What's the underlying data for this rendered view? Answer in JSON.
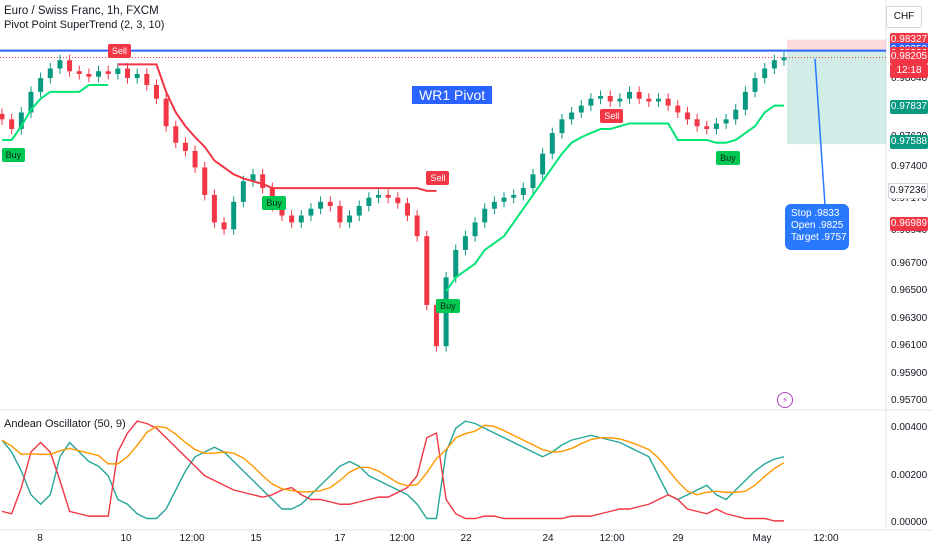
{
  "header": {
    "symbol_title": "Euro / Swiss Franc, 1h, FXCM",
    "indicator_1": "Pivot Point SuperTrend (2, 3, 10)",
    "currency": "CHF"
  },
  "annotations": {
    "wr1_label": "WR1 Pivot",
    "note_lines": [
      "Stop .9833",
      "Open .9825",
      "Target .9757"
    ],
    "sell_label": "Sell",
    "buy_label": "Buy"
  },
  "oscillator": {
    "label": "Andean Oscillator (50, 9)"
  },
  "price_axis": {
    "ticks": [
      "0.98320",
      "0.98230",
      "0.98040",
      "0.97620",
      "0.97400",
      "0.97170",
      "0.96940",
      "0.96700",
      "0.96500",
      "0.96300",
      "0.96100",
      "0.95900",
      "0.95700"
    ]
  },
  "osc_axis": {
    "ticks": [
      "0.00400",
      "0.00200",
      "0.00000"
    ]
  },
  "price_tags": [
    {
      "text": "0.98327",
      "color": "#f23645"
    },
    {
      "text": "0.98253",
      "color": "#2962ff"
    },
    {
      "text": "0.98226",
      "color": "#f23645"
    },
    {
      "text": "0.98205",
      "color": "#f23645"
    },
    {
      "text": "12:18",
      "color": "#f23645"
    },
    {
      "text": "0.97837",
      "color": "#089981"
    },
    {
      "text": "0.97588",
      "color": "#089981"
    },
    {
      "text": "0.97236",
      "color": "#ffffff"
    },
    {
      "text": "0.96989",
      "color": "#f23645"
    }
  ],
  "time_axis": {
    "labels": [
      "8",
      "10",
      "12:00",
      "15",
      "17",
      "12:00",
      "22",
      "24",
      "12:00",
      "29",
      "May",
      "12:00"
    ]
  },
  "colors": {
    "up": "#089981",
    "down": "#f23645",
    "supertrend_up": "#00e676",
    "supertrend_down": "#f23645",
    "pivot": "#2962ff",
    "osc_bull": "#26a69a",
    "osc_bear": "#f23645",
    "osc_signal": "#ff9800"
  },
  "chart_data": {
    "type": "line",
    "title": "Euro / Swiss Franc, 1h, FXCM",
    "x_labels": [
      "8",
      "10",
      "12:00",
      "15",
      "17",
      "12:00",
      "22",
      "24",
      "12:00",
      "29",
      "May",
      "12:00"
    ],
    "ylim": [
      0.9565,
      0.984
    ],
    "pivot_WR1": 0.9825,
    "trade": {
      "stop": 0.9833,
      "open": 0.9825,
      "target": 0.9757
    },
    "price_close": [
      0.9775,
      0.9768,
      0.978,
      0.9795,
      0.9805,
      0.9812,
      0.9818,
      0.981,
      0.9808,
      0.9806,
      0.981,
      0.9808,
      0.9812,
      0.9805,
      0.9808,
      0.98,
      0.979,
      0.977,
      0.9758,
      0.9752,
      0.974,
      0.972,
      0.97,
      0.9695,
      0.9715,
      0.973,
      0.9735,
      0.9725,
      0.9712,
      0.9705,
      0.97,
      0.9705,
      0.971,
      0.9715,
      0.9712,
      0.97,
      0.9705,
      0.9712,
      0.9718,
      0.972,
      0.9718,
      0.9714,
      0.9705,
      0.969,
      0.964,
      0.961,
      0.966,
      0.968,
      0.969,
      0.97,
      0.971,
      0.9715,
      0.9718,
      0.972,
      0.9725,
      0.9735,
      0.975,
      0.9765,
      0.9775,
      0.978,
      0.9785,
      0.979,
      0.9792,
      0.9788,
      0.979,
      0.9795,
      0.979,
      0.9788,
      0.979,
      0.9785,
      0.978,
      0.9775,
      0.977,
      0.9768,
      0.9772,
      0.9775,
      0.9782,
      0.9795,
      0.9805,
      0.9812,
      0.9818,
      0.982
    ],
    "supertrend": [
      0.976,
      0.976,
      0.977,
      0.9782,
      0.979,
      0.9795,
      0.9795,
      0.9795,
      0.9795,
      0.98,
      0.98,
      0.98,
      0.9815,
      0.9815,
      0.9815,
      0.9815,
      0.9815,
      0.9795,
      0.978,
      0.977,
      0.9762,
      0.9755,
      0.9745,
      0.974,
      0.9735,
      0.9732,
      0.973,
      0.9728,
      0.9725,
      0.9725,
      0.9725,
      0.9725,
      0.9725,
      0.9725,
      0.9725,
      0.9725,
      0.9725,
      0.9725,
      0.9725,
      0.9725,
      0.9725,
      0.9725,
      0.9725,
      0.9725,
      0.9723,
      0.9723,
      0.965,
      0.966,
      0.9665,
      0.967,
      0.968,
      0.9685,
      0.969,
      0.97,
      0.971,
      0.972,
      0.973,
      0.974,
      0.975,
      0.9758,
      0.9762,
      0.9765,
      0.9768,
      0.9768,
      0.977,
      0.9772,
      0.9772,
      0.9772,
      0.9772,
      0.9772,
      0.976,
      0.976,
      0.976,
      0.976,
      0.9758,
      0.9758,
      0.976,
      0.9765,
      0.977,
      0.978,
      0.9785,
      0.9785
    ],
    "supertrend_dir": [
      1,
      1,
      1,
      1,
      1,
      1,
      1,
      1,
      1,
      1,
      1,
      1,
      -1,
      -1,
      -1,
      -1,
      -1,
      -1,
      -1,
      -1,
      -1,
      -1,
      -1,
      -1,
      -1,
      -1,
      -1,
      -1,
      -1,
      -1,
      -1,
      -1,
      -1,
      -1,
      -1,
      -1,
      -1,
      -1,
      -1,
      -1,
      -1,
      -1,
      -1,
      -1,
      -1,
      -1,
      1,
      1,
      1,
      1,
      1,
      1,
      1,
      1,
      1,
      1,
      1,
      1,
      1,
      1,
      1,
      1,
      1,
      1,
      1,
      1,
      1,
      1,
      1,
      1,
      1,
      1,
      1,
      1,
      1,
      1,
      1,
      1,
      1,
      1,
      1,
      1
    ],
    "osc_bull": [
      0.0035,
      0.003,
      0.0022,
      0.0012,
      0.0008,
      0.0012,
      0.0028,
      0.0034,
      0.003,
      0.0026,
      0.0024,
      0.002,
      0.001,
      0.0008,
      0.0004,
      0.0002,
      0.0002,
      0.0006,
      0.0014,
      0.0022,
      0.0028,
      0.003,
      0.0032,
      0.003,
      0.0026,
      0.0022,
      0.0018,
      0.0014,
      0.001,
      0.0006,
      0.0006,
      0.0008,
      0.0012,
      0.0016,
      0.002,
      0.0024,
      0.0026,
      0.0024,
      0.002,
      0.0018,
      0.0016,
      0.0014,
      0.0012,
      0.0008,
      0.0002,
      0.0002,
      0.003,
      0.004,
      0.0043,
      0.0042,
      0.004,
      0.0038,
      0.0036,
      0.0034,
      0.0032,
      0.003,
      0.0028,
      0.003,
      0.0033,
      0.0035,
      0.0036,
      0.0037,
      0.0036,
      0.0035,
      0.0034,
      0.0032,
      0.003,
      0.0028,
      0.002,
      0.0012,
      0.001,
      0.0012,
      0.0014,
      0.0016,
      0.0012,
      0.001,
      0.0014,
      0.0018,
      0.0022,
      0.0025,
      0.0027,
      0.0028
    ],
    "osc_bear": [
      0.0005,
      0.0004,
      0.0015,
      0.003,
      0.0034,
      0.003,
      0.0018,
      0.0005,
      0.0004,
      0.0003,
      0.0003,
      0.0003,
      0.003,
      0.0038,
      0.0043,
      0.0042,
      0.004,
      0.0036,
      0.0032,
      0.0028,
      0.0024,
      0.002,
      0.0018,
      0.0016,
      0.0014,
      0.0013,
      0.0012,
      0.0011,
      0.0012,
      0.0014,
      0.0015,
      0.0012,
      0.001,
      0.001,
      0.0009,
      0.0008,
      0.0008,
      0.0009,
      0.001,
      0.0011,
      0.0011,
      0.0013,
      0.0015,
      0.002,
      0.0036,
      0.0038,
      0.001,
      0.0004,
      0.0002,
      0.0002,
      0.0003,
      0.0003,
      0.0002,
      0.0002,
      0.0002,
      0.0002,
      0.0002,
      0.0002,
      0.0002,
      0.0003,
      0.0003,
      0.0003,
      0.0004,
      0.0005,
      0.0006,
      0.0006,
      0.0007,
      0.0008,
      0.001,
      0.0012,
      0.001,
      0.0006,
      0.0005,
      0.0004,
      0.0006,
      0.0004,
      0.0003,
      0.0002,
      0.0002,
      0.0002,
      0.0001,
      0.0001
    ],
    "osc_ylim": [
      -0.0002,
      0.0046
    ],
    "signals": [
      {
        "type": "sell",
        "index": 12
      },
      {
        "type": "buy",
        "index": 1
      },
      {
        "type": "buy",
        "index": 28
      },
      {
        "type": "sell",
        "index": 45
      },
      {
        "type": "buy",
        "index": 46
      },
      {
        "type": "sell",
        "index": 63
      },
      {
        "type": "buy",
        "index": 75
      }
    ]
  }
}
